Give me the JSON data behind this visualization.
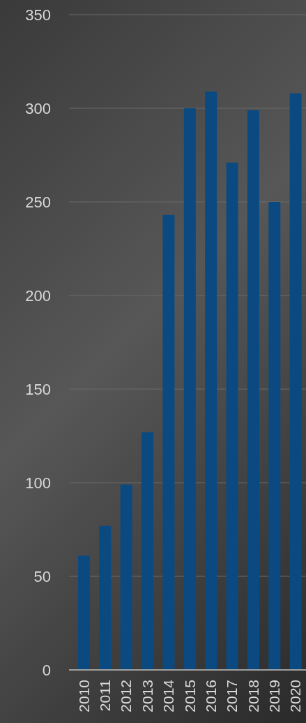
{
  "chart_data": {
    "type": "bar",
    "categories": [
      "2010",
      "2011",
      "2012",
      "2013",
      "2014",
      "2015",
      "2016",
      "2017",
      "2018",
      "2019",
      "2020"
    ],
    "values": [
      61,
      77,
      99,
      127,
      243,
      300,
      309,
      271,
      299,
      250,
      308
    ],
    "color": "#0b4a80",
    "ylim": [
      0,
      350
    ],
    "yticks": [
      0,
      50,
      100,
      150,
      200,
      250,
      300,
      350
    ],
    "grid": "y"
  }
}
